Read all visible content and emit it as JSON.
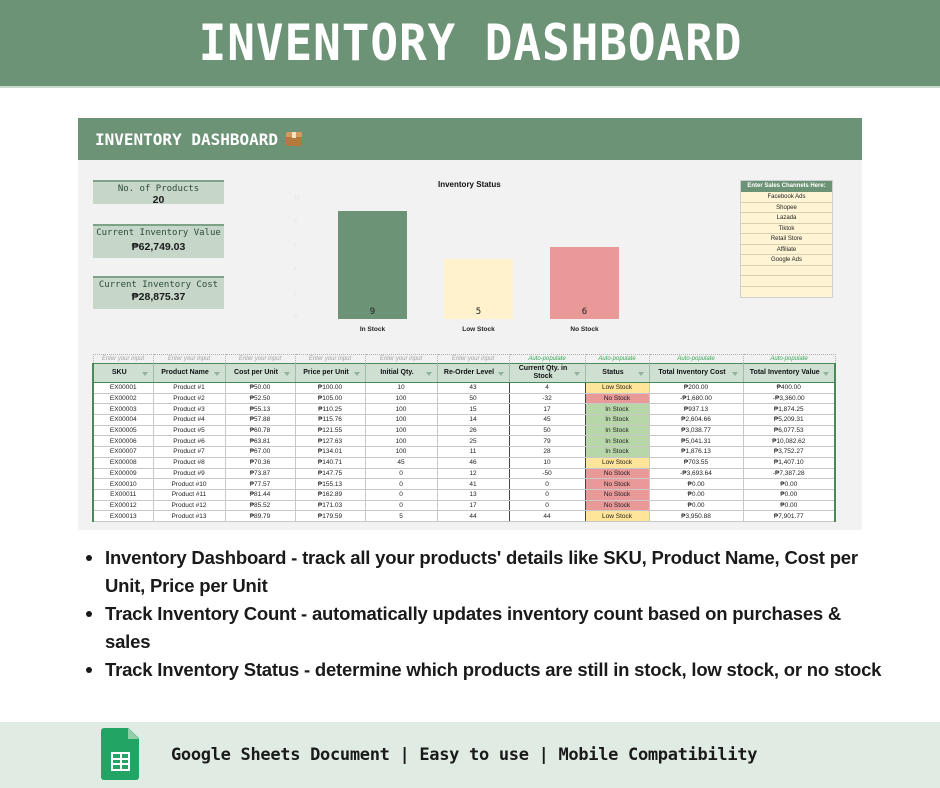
{
  "banner": {
    "title": "INVENTORY DASHBOARD"
  },
  "sheet": {
    "title": "INVENTORY DASHBOARD",
    "title_icon": "package-icon",
    "kpis": [
      {
        "label": "No. of Products",
        "value": "20"
      },
      {
        "label": "Current Inventory Value",
        "value": "₱62,749.03"
      },
      {
        "label": "Current Inventory Cost",
        "value": "₱28,875.37"
      }
    ],
    "sales_channels": {
      "header": "Enter Sales Channels Here:",
      "items": [
        "Facebook Ads",
        "Shopee",
        "Lazada",
        "Tiktok",
        "Retail Store",
        "Affiliate",
        "Google Ads",
        "",
        "",
        ""
      ]
    }
  },
  "chart_data": {
    "type": "bar",
    "title": "Inventory Status",
    "categories": [
      "In Stock",
      "Low Stock",
      "No Stock"
    ],
    "values": [
      9,
      5,
      6
    ],
    "colors": [
      "#6d9377",
      "#fff2cc",
      "#ea9999"
    ],
    "xlabel": "",
    "ylabel": "",
    "ylim": [
      0,
      10
    ],
    "grid": false,
    "legend": "none",
    "data_labels": true
  },
  "table": {
    "hints": [
      "Enter your input",
      "Enter your input",
      "Enter your input",
      "Enter your input",
      "Enter your input",
      "Enter your input",
      "Auto-populate",
      "Auto-populate",
      "Auto-populate",
      "Auto-populate"
    ],
    "columns": [
      "SKU",
      "Product Name",
      "Cost per Unit",
      "Price per Unit",
      "Initial Qty.",
      "Re-Order Level",
      "Current Qty. in Stock",
      "Status",
      "Total Inventory Cost",
      "Total Inventory Value"
    ],
    "rows": [
      [
        "EX00001",
        "Product #1",
        "₱50.00",
        "₱100.00",
        "10",
        "43",
        "4",
        "Low Stock",
        "₱200.00",
        "₱400.00"
      ],
      [
        "EX00002",
        "Product #2",
        "₱52.50",
        "₱105.00",
        "100",
        "50",
        "-32",
        "No Stock",
        "-₱1,680.00",
        "-₱3,360.00"
      ],
      [
        "EX00003",
        "Product #3",
        "₱55.13",
        "₱110.25",
        "100",
        "15",
        "17",
        "In Stock",
        "₱937.13",
        "₱1,874.25"
      ],
      [
        "EX00004",
        "Product #4",
        "₱57.88",
        "₱115.76",
        "100",
        "14",
        "45",
        "In Stock",
        "₱2,604.66",
        "₱5,209.31"
      ],
      [
        "EX00005",
        "Product #5",
        "₱60.78",
        "₱121.55",
        "100",
        "26",
        "50",
        "In Stock",
        "₱3,038.77",
        "₱6,077.53"
      ],
      [
        "EX00006",
        "Product #6",
        "₱63.81",
        "₱127.63",
        "100",
        "25",
        "79",
        "In Stock",
        "₱5,041.31",
        "₱10,082.62"
      ],
      [
        "EX00007",
        "Product #7",
        "₱67.00",
        "₱134.01",
        "100",
        "11",
        "28",
        "In Stock",
        "₱1,876.13",
        "₱3,752.27"
      ],
      [
        "EX00008",
        "Product #8",
        "₱70.36",
        "₱140.71",
        "45",
        "46",
        "10",
        "Low Stock",
        "₱703.55",
        "₱1,407.10"
      ],
      [
        "EX00009",
        "Product #9",
        "₱73.87",
        "₱147.75",
        "0",
        "12",
        "-50",
        "No Stock",
        "-₱3,693.64",
        "-₱7,387.28"
      ],
      [
        "EX00010",
        "Product #10",
        "₱77.57",
        "₱155.13",
        "0",
        "41",
        "0",
        "No Stock",
        "₱0.00",
        "₱0.00"
      ],
      [
        "EX00011",
        "Product #11",
        "₱81.44",
        "₱162.89",
        "0",
        "13",
        "0",
        "No Stock",
        "₱0.00",
        "₱0.00"
      ],
      [
        "EX00012",
        "Product #12",
        "₱85.52",
        "₱171.03",
        "0",
        "17",
        "0",
        "No Stock",
        "₱0.00",
        "₱0.00"
      ],
      [
        "EX00013",
        "Product #13",
        "₱89.79",
        "₱179.59",
        "5",
        "44",
        "44",
        "Low Stock",
        "₱3,950.88",
        "₱7,901.77"
      ]
    ]
  },
  "bullets": [
    "Inventory Dashboard - track all your products' details like SKU, Product Name, Cost per Unit, Price per Unit",
    "Track Inventory Count - automatically updates inventory count based on purchases & sales",
    "Track Inventory Status - determine which products are still in stock, low stock, or no stock"
  ],
  "footer": {
    "icon": "google-sheets-icon",
    "text": "Google Sheets Document | Easy to use | Mobile Compatibility"
  }
}
